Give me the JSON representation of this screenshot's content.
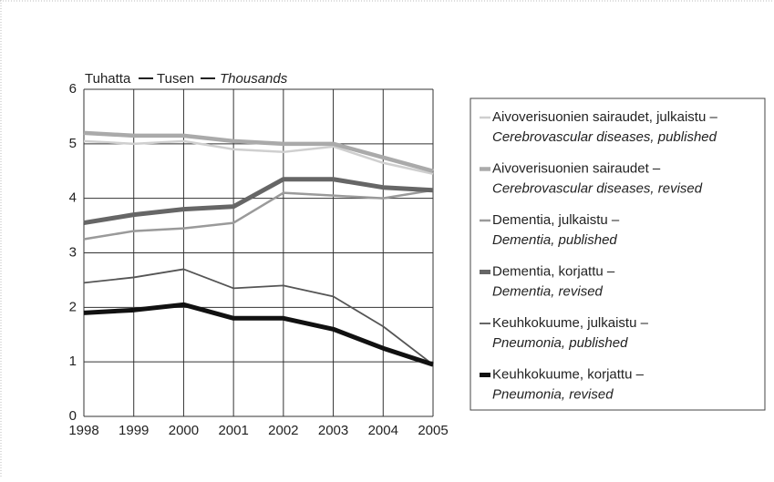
{
  "chart_data": {
    "type": "line",
    "y_label_parts": [
      "Tuhatta",
      "Tusen",
      "Thousands"
    ],
    "categories": [
      "1998",
      "1999",
      "2000",
      "2001",
      "2002",
      "2003",
      "2004",
      "2005"
    ],
    "ylim": [
      0,
      6
    ],
    "yticks": [
      0,
      1,
      2,
      3,
      4,
      5,
      6
    ],
    "grid": true,
    "legend": "right",
    "series": [
      {
        "name": "Aivoverisuonien sairaudet, julkaistu –",
        "name_en": "Cerebrovascular diseases, published",
        "color": "#cfcfcf",
        "width": 2.5,
        "values": [
          5.05,
          5.0,
          5.05,
          4.9,
          4.85,
          4.95,
          4.65,
          4.45
        ]
      },
      {
        "name": "Aivoverisuonien sairaudet –",
        "name_en": "Cerebrovascular diseases, revised",
        "color": "#aaaaaa",
        "width": 4.5,
        "values": [
          5.2,
          5.15,
          5.15,
          5.05,
          5.0,
          5.0,
          4.75,
          4.5
        ]
      },
      {
        "name": "Dementia, julkaistu –",
        "name_en": "Dementia, published",
        "color": "#9a9a9a",
        "width": 2.5,
        "values": [
          3.25,
          3.4,
          3.45,
          3.55,
          4.1,
          4.05,
          4.0,
          4.15
        ]
      },
      {
        "name": "Dementia, korjattu –",
        "name_en": "Dementia, revised",
        "color": "#666666",
        "width": 5,
        "values": [
          3.55,
          3.7,
          3.8,
          3.85,
          4.35,
          4.35,
          4.2,
          4.15
        ]
      },
      {
        "name": "Keuhkokuume, julkaistu –",
        "name_en": "Pneumonia, published",
        "color": "#555555",
        "width": 1.8,
        "values": [
          2.45,
          2.55,
          2.7,
          2.35,
          2.4,
          2.2,
          1.65,
          0.95
        ]
      },
      {
        "name": "Keuhkokuume, korjattu –",
        "name_en": "Pneumonia, revised",
        "color": "#111111",
        "width": 5,
        "values": [
          1.9,
          1.95,
          2.05,
          1.8,
          1.8,
          1.6,
          1.25,
          0.95
        ]
      }
    ]
  }
}
